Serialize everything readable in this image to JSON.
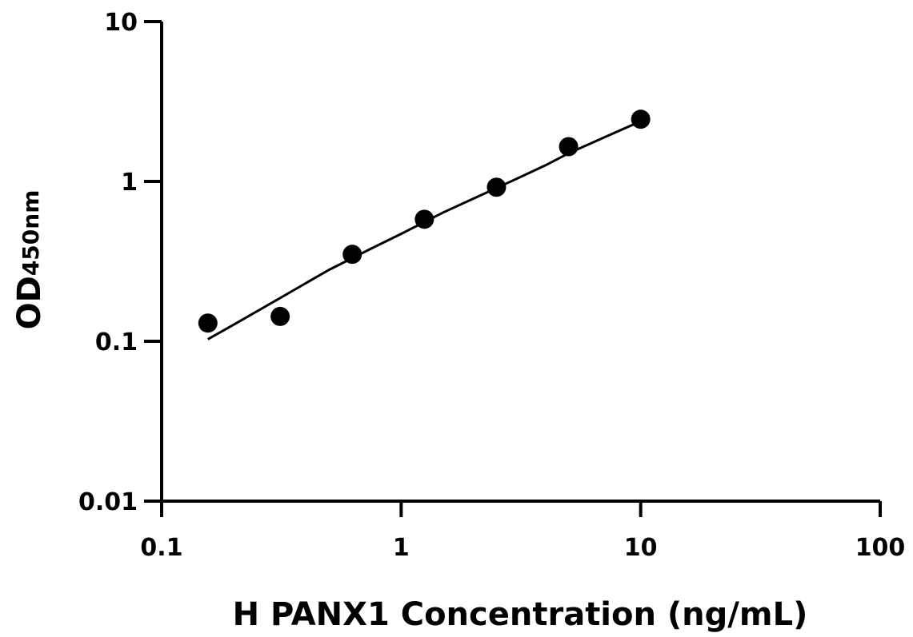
{
  "chart_data": {
    "type": "scatter",
    "x_scale": "log",
    "y_scale": "log",
    "xlabel": "H PANX1 Concentration (ng/mL)",
    "ylabel_main": "OD",
    "ylabel_sub": "450nm",
    "xlim": [
      0.1,
      100
    ],
    "ylim": [
      0.01,
      10
    ],
    "x_ticks": [
      0.1,
      1,
      10,
      100
    ],
    "x_tick_labels": [
      "0.1",
      "1",
      "10",
      "100"
    ],
    "y_ticks": [
      0.01,
      0.1,
      1,
      10
    ],
    "y_tick_labels": [
      "0.01",
      "0.1",
      "1",
      "10"
    ],
    "grid": false,
    "series": [
      {
        "x": [
          0.156,
          0.3125,
          0.625,
          1.25,
          2.5,
          5,
          10
        ],
        "y": [
          0.13,
          0.143,
          0.35,
          0.58,
          0.92,
          1.65,
          2.45
        ]
      }
    ],
    "fit_curve": {
      "x": [
        0.156,
        0.2,
        0.3,
        0.5,
        0.75,
        1,
        1.5,
        2,
        3,
        4,
        5,
        7,
        10
      ],
      "y": [
        0.103,
        0.127,
        0.18,
        0.28,
        0.38,
        0.47,
        0.64,
        0.78,
        1.03,
        1.26,
        1.5,
        1.88,
        2.38
      ]
    },
    "colors": {
      "points": "#000000",
      "curve": "#000000",
      "axes": "#000000"
    }
  }
}
